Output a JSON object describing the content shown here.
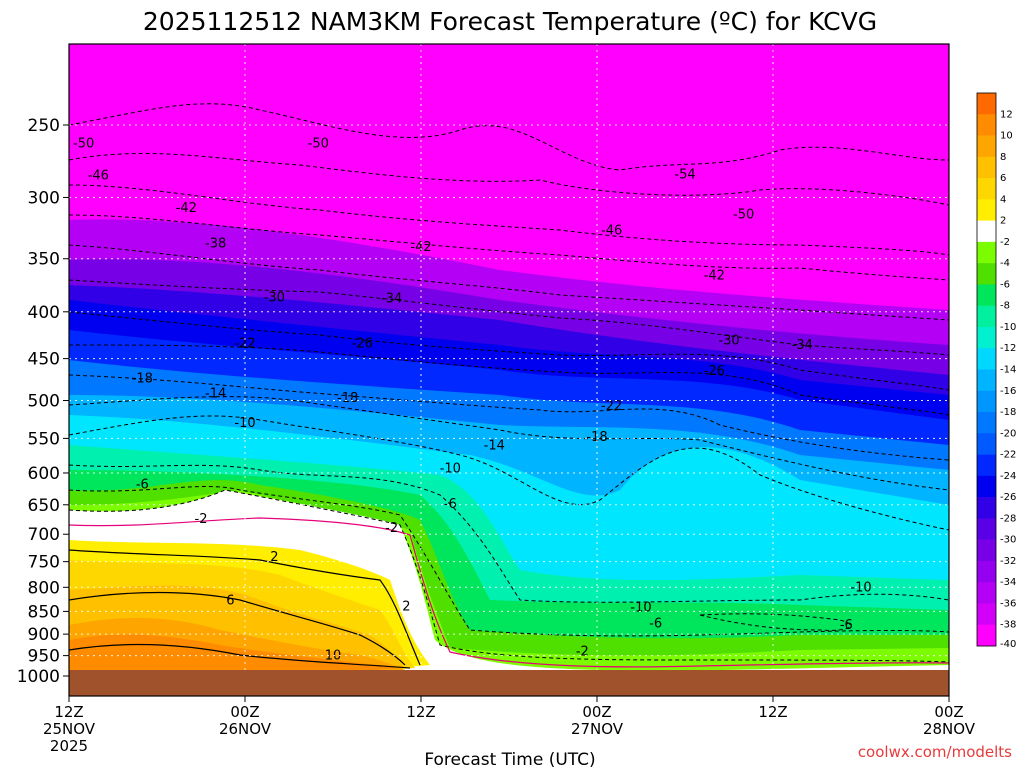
{
  "chart_data": {
    "type": "heatmap",
    "title": "2025112512 NAM3KM Forecast Temperature (ºC) for KCVG",
    "xlabel": "Forecast Time (UTC)",
    "ylabel": "",
    "credit": "coolwx.com/modelts",
    "x_ticks": [
      {
        "time": "2025-11-25T12",
        "label1": "12Z",
        "label2": "25NOV",
        "label3": "2025"
      },
      {
        "time": "2025-11-26T00",
        "label1": "00Z",
        "label2": "26NOV",
        "label3": ""
      },
      {
        "time": "2025-11-26T12",
        "label1": "12Z",
        "label2": "",
        "label3": ""
      },
      {
        "time": "2025-11-27T00",
        "label1": "00Z",
        "label2": "27NOV",
        "label3": ""
      },
      {
        "time": "2025-11-27T12",
        "label1": "12Z",
        "label2": "",
        "label3": ""
      },
      {
        "time": "2025-11-28T00",
        "label1": "00Z",
        "label2": "28NOV",
        "label3": ""
      }
    ],
    "y_axis": {
      "scale": "log-pressure",
      "range_hpa": [
        1000,
        200
      ],
      "inverted": true,
      "ticks": [
        250,
        300,
        350,
        400,
        450,
        500,
        550,
        600,
        650,
        700,
        750,
        800,
        850,
        900,
        950,
        1000
      ]
    },
    "grid": true,
    "surface_color": "#a0522d",
    "colorbar": {
      "position": "right",
      "labels": [
        "12",
        "10",
        "8",
        "6",
        "4",
        "2",
        "-2",
        "-4",
        "-6",
        "-8",
        "-10",
        "-12",
        "-14",
        "-16",
        "-18",
        "-20",
        "-22",
        "-24",
        "-26",
        "-28",
        "-30",
        "-32",
        "-34",
        "-36",
        "-38",
        "-40"
      ],
      "colors": [
        "#ff6a00",
        "#ff8c00",
        "#ffa500",
        "#ffc000",
        "#ffd700",
        "#ffee00",
        "#ffffff",
        "#7cfc00",
        "#4fe000",
        "#00e65c",
        "#00f0a0",
        "#00f0d0",
        "#00d8ff",
        "#00b4ff",
        "#0096ff",
        "#0078ff",
        "#005aff",
        "#0028ff",
        "#0000f0",
        "#3200e6",
        "#5a00e6",
        "#7800e6",
        "#9600f0",
        "#b400f5",
        "#d200f8",
        "#ff00ff"
      ]
    },
    "contour_labels": [
      {
        "value": "-50",
        "time": "2025-11-25T13",
        "p": 262
      },
      {
        "value": "-50",
        "time": "2025-11-26T05",
        "p": 262
      },
      {
        "value": "-54",
        "time": "2025-11-27T06",
        "p": 283
      },
      {
        "value": "-46",
        "time": "2025-11-25T14",
        "p": 284
      },
      {
        "value": "-50",
        "time": "2025-11-27T10",
        "p": 313
      },
      {
        "value": "-42",
        "time": "2025-11-25T20",
        "p": 308
      },
      {
        "value": "-46",
        "time": "2025-11-27T01",
        "p": 326
      },
      {
        "value": "-38",
        "time": "2025-11-25T22",
        "p": 337
      },
      {
        "value": "-42",
        "time": "2025-11-26T12",
        "p": 340
      },
      {
        "value": "-42",
        "time": "2025-11-27T08",
        "p": 365
      },
      {
        "value": "-30",
        "time": "2025-11-26T02",
        "p": 386
      },
      {
        "value": "-34",
        "time": "2025-11-26T10",
        "p": 387
      },
      {
        "value": "-22",
        "time": "2025-11-26T00",
        "p": 433
      },
      {
        "value": "-26",
        "time": "2025-11-26T08",
        "p": 433
      },
      {
        "value": "-30",
        "time": "2025-11-27T09",
        "p": 430
      },
      {
        "value": "-34",
        "time": "2025-11-27T14",
        "p": 435
      },
      {
        "value": "-18",
        "time": "2025-11-25T17",
        "p": 473
      },
      {
        "value": "-26",
        "time": "2025-11-27T08",
        "p": 464
      },
      {
        "value": "-14",
        "time": "2025-11-25T22",
        "p": 491
      },
      {
        "value": "-18",
        "time": "2025-11-26T07",
        "p": 497
      },
      {
        "value": "-22",
        "time": "2025-11-27T01",
        "p": 507
      },
      {
        "value": "-10",
        "time": "2025-11-26T00",
        "p": 529
      },
      {
        "value": "-18",
        "time": "2025-11-27T00",
        "p": 548
      },
      {
        "value": "-14",
        "time": "2025-11-26T17",
        "p": 560
      },
      {
        "value": "-10",
        "time": "2025-11-26T14",
        "p": 593
      },
      {
        "value": "-6",
        "time": "2025-11-25T17",
        "p": 618
      },
      {
        "value": "-6",
        "time": "2025-11-26T14",
        "p": 649
      },
      {
        "value": "-2",
        "time": "2025-11-25T21",
        "p": 674
      },
      {
        "value": "-2",
        "time": "2025-11-26T10",
        "p": 689
      },
      {
        "value": "2",
        "time": "2025-11-26T02",
        "p": 741
      },
      {
        "value": "6",
        "time": "2025-11-25T23",
        "p": 827
      },
      {
        "value": "2",
        "time": "2025-11-26T11",
        "p": 840
      },
      {
        "value": "-10",
        "time": "2025-11-27T03",
        "p": 842
      },
      {
        "value": "-10",
        "time": "2025-11-27T18",
        "p": 800
      },
      {
        "value": "-6",
        "time": "2025-11-27T04",
        "p": 876
      },
      {
        "value": "-6",
        "time": "2025-11-27T17",
        "p": 880
      },
      {
        "value": "10",
        "time": "2025-11-26T06",
        "p": 950
      },
      {
        "value": "-2",
        "time": "2025-11-26T23",
        "p": 940
      }
    ]
  }
}
